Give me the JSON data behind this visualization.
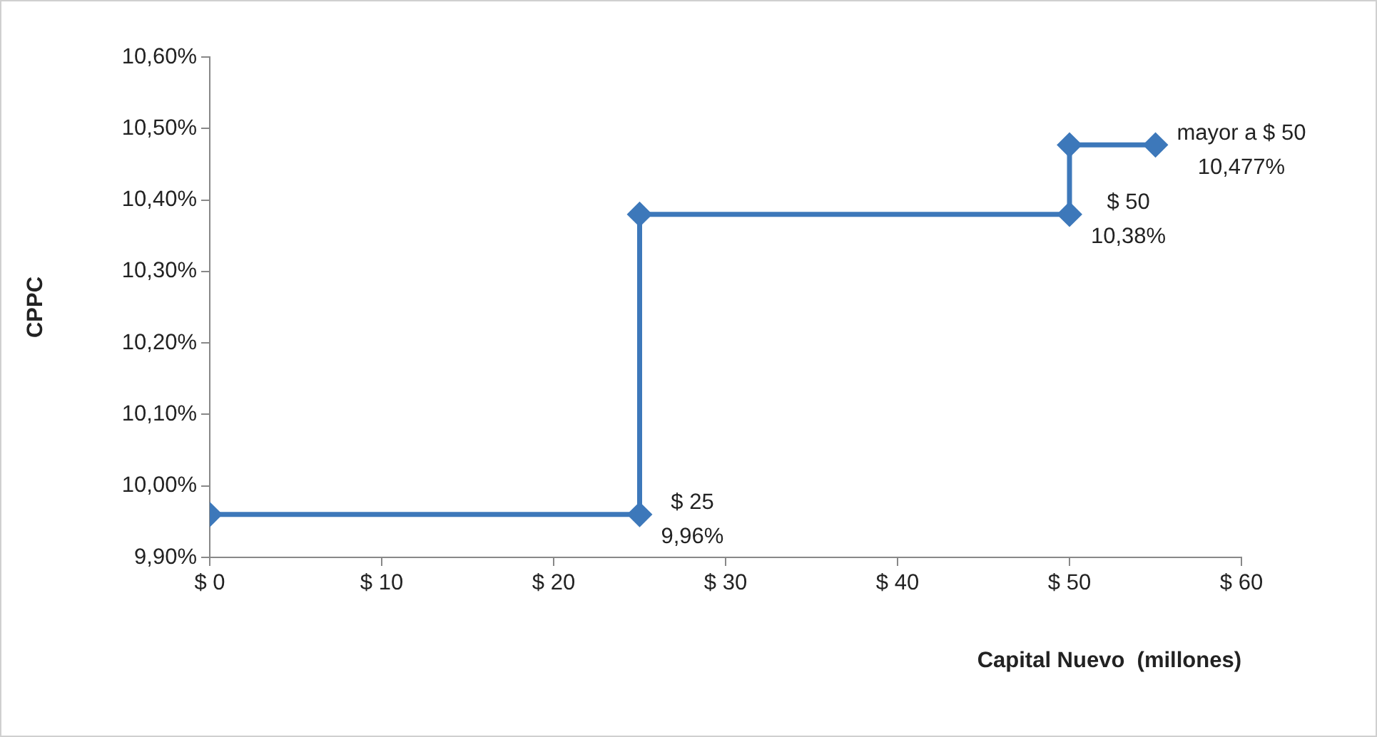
{
  "chart_data": {
    "type": "step",
    "xlabel": "Capital Nuevo  (millones)",
    "ylabel": "CPPC",
    "x": [
      0,
      25,
      25,
      50,
      50,
      55
    ],
    "series": [
      {
        "color": "#3d78ba",
        "values": [
          9.96,
          9.96,
          10.38,
          10.38,
          10.477,
          10.477
        ]
      }
    ],
    "xlim": [
      0,
      60
    ],
    "xticks": [
      {
        "value": 0,
        "label": "$ 0"
      },
      {
        "value": 10,
        "label": "$ 10"
      },
      {
        "value": 20,
        "label": "$ 20"
      },
      {
        "value": 30,
        "label": "$ 30"
      },
      {
        "value": 40,
        "label": "$ 40"
      },
      {
        "value": 50,
        "label": "$ 50"
      },
      {
        "value": 60,
        "label": "$ 60"
      }
    ],
    "ylim": [
      9.9,
      10.6
    ],
    "yticks": [
      {
        "value": 9.9,
        "label": "9,90%"
      },
      {
        "value": 10.0,
        "label": "10,00%"
      },
      {
        "value": 10.1,
        "label": "10,10%"
      },
      {
        "value": 10.2,
        "label": "10,20%"
      },
      {
        "value": 10.3,
        "label": "10,30%"
      },
      {
        "value": 10.4,
        "label": "10,40%"
      },
      {
        "value": 10.5,
        "label": "10,50%"
      },
      {
        "value": 10.6,
        "label": "10,60%"
      }
    ],
    "annotations": [
      {
        "text": "$ 25\n9,96%",
        "x": 25,
        "y": 9.96
      },
      {
        "text": "$ 50\n10,38%",
        "x": 50,
        "y": 10.38
      },
      {
        "text": "mayor a $ 50\n10,477%",
        "x": 55,
        "y": 10.477
      }
    ],
    "marker": "diamond",
    "line_style": "solid",
    "grid": false,
    "legend": false
  }
}
